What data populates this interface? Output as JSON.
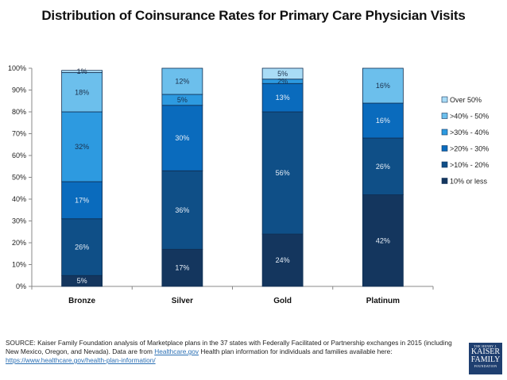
{
  "chart_data": {
    "type": "bar",
    "stacked": true,
    "title": "Distribution of Coinsurance Rates for Primary Care Physician Visits",
    "xlabel": "",
    "ylabel": "",
    "ylim": [
      0,
      100
    ],
    "y_ticks": [
      "0%",
      "10%",
      "20%",
      "30%",
      "40%",
      "50%",
      "60%",
      "70%",
      "80%",
      "90%",
      "100%"
    ],
    "grid": false,
    "legend_position": "right",
    "categories": [
      "Bronze",
      "Silver",
      "Gold",
      "Platinum"
    ],
    "series": [
      {
        "name": "10% or less",
        "color": "#14365e",
        "label_color": "#e6eef7",
        "values": [
          5,
          17,
          24,
          42
        ]
      },
      {
        "name": ">10% - 20%",
        "color": "#0f4f87",
        "label_color": "#e6eef7",
        "values": [
          26,
          36,
          56,
          26
        ]
      },
      {
        "name": ">20% - 30%",
        "color": "#0a6bbd",
        "label_color": "#e6eef7",
        "values": [
          17,
          30,
          13,
          16
        ]
      },
      {
        "name": ">30% - 40%",
        "color": "#2d9ae0",
        "label_color": "#1b2f4a",
        "values": [
          32,
          5,
          2,
          0
        ]
      },
      {
        "name": ">40% - 50%",
        "color": "#6cbfec",
        "label_color": "#1b2f4a",
        "values": [
          18,
          12,
          0,
          16
        ]
      },
      {
        "name": "Over 50%",
        "color": "#a9dcf6",
        "label_color": "#1b2f4a",
        "values": [
          1,
          0,
          5,
          0
        ]
      }
    ],
    "data_labels": [
      [
        "5%",
        "26%",
        "17%",
        "32%",
        "18%",
        "1%"
      ],
      [
        "17%",
        "36%",
        "30%",
        "5%",
        "12%",
        ""
      ],
      [
        "24%",
        "56%",
        "13%",
        "2%",
        "",
        "5%"
      ],
      [
        "42%",
        "26%",
        "16%",
        "",
        "16%",
        ""
      ]
    ]
  },
  "legend_order": [
    "Over 50%",
    ">40% - 50%",
    ">30% - 40%",
    ">20% - 30%",
    ">10% - 20%",
    "10% or less"
  ],
  "source": {
    "text_1": "SOURCE: Kaiser Family Foundation analysis of Marketplace plans in the 37 states with Federally Facilitated or Partnership exchanges in 2015 (including New Mexico, Oregon, and Nevada). Data are from ",
    "link_1": "Healthcare.gov",
    "text_2": " Health plan information for individuals and families available here: ",
    "link_2": "https://www.healthcare.gov/health-plan-information/"
  },
  "logo": {
    "line1": "THE HENRY J.",
    "line2": "KAISER",
    "line3": "FAMILY",
    "line4": "FOUNDATION"
  }
}
